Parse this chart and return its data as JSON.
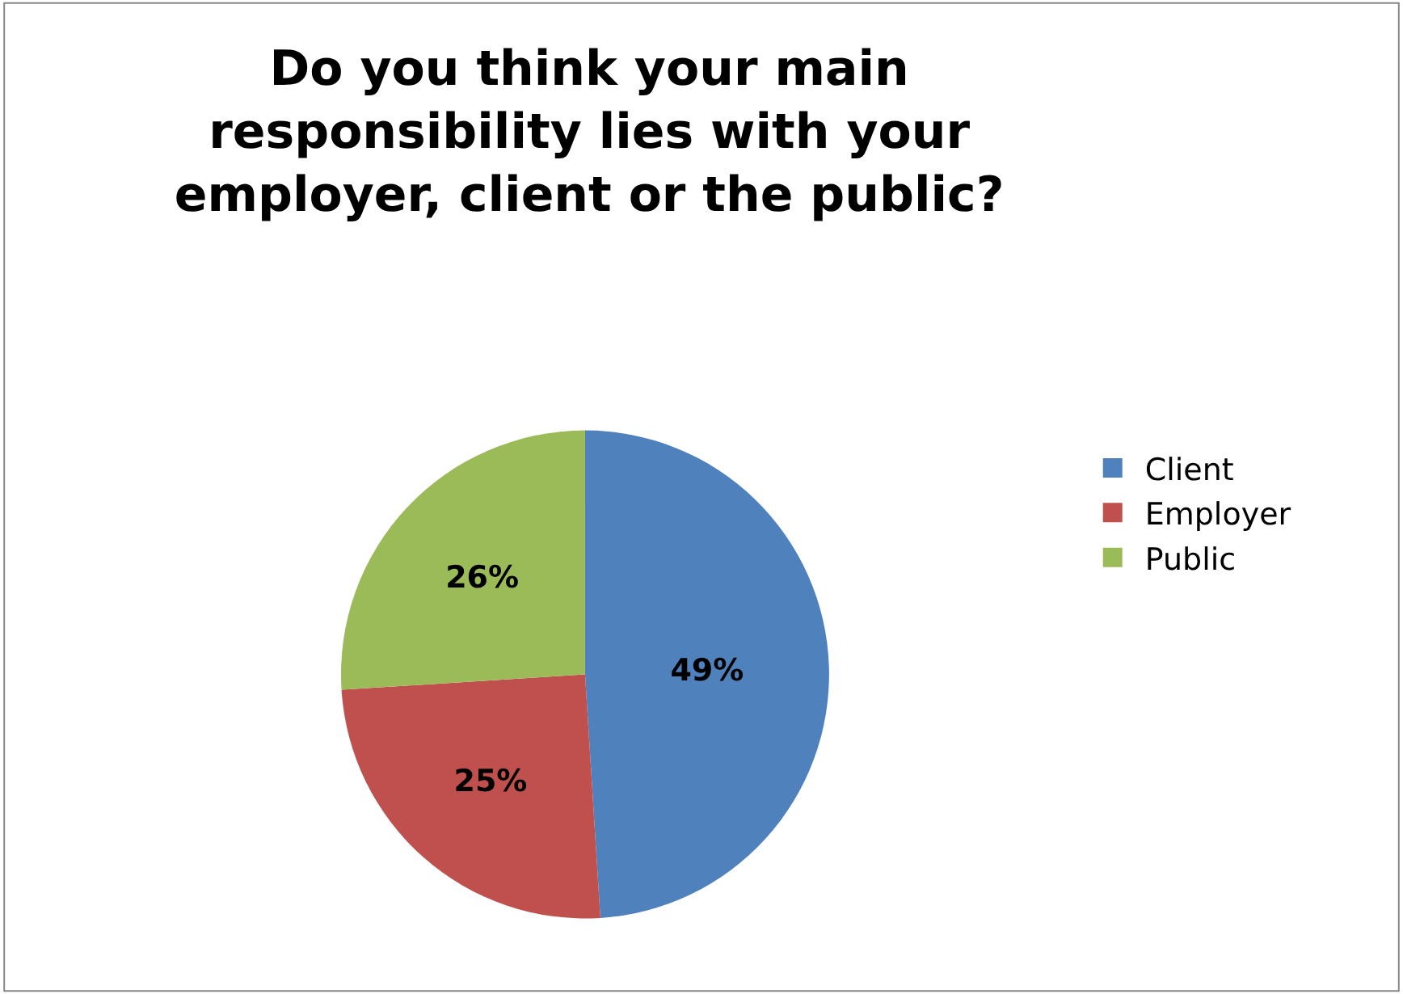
{
  "chart_data": {
    "type": "pie",
    "title": "Do you think your main responsibility lies with your employer, client or the public?",
    "categories": [
      "Client",
      "Employer",
      "Public"
    ],
    "values": [
      49,
      25,
      26
    ],
    "colors": [
      "#4f81bd",
      "#c0504d",
      "#9bbb59"
    ],
    "value_labels": [
      "49%",
      "25%",
      "26%"
    ],
    "legend": "right"
  }
}
